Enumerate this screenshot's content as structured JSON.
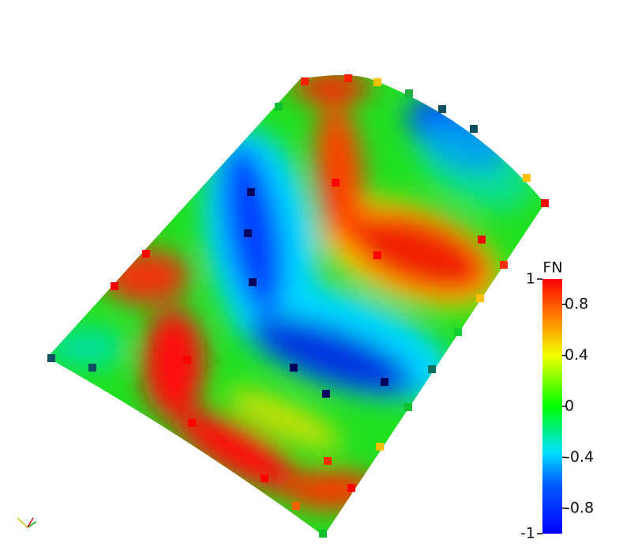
{
  "colorbar": {
    "title": "FN",
    "range": [
      -1,
      1
    ],
    "ticks": [
      1,
      0.8,
      0.4,
      0,
      -0.4,
      -0.8,
      -1
    ]
  }
}
